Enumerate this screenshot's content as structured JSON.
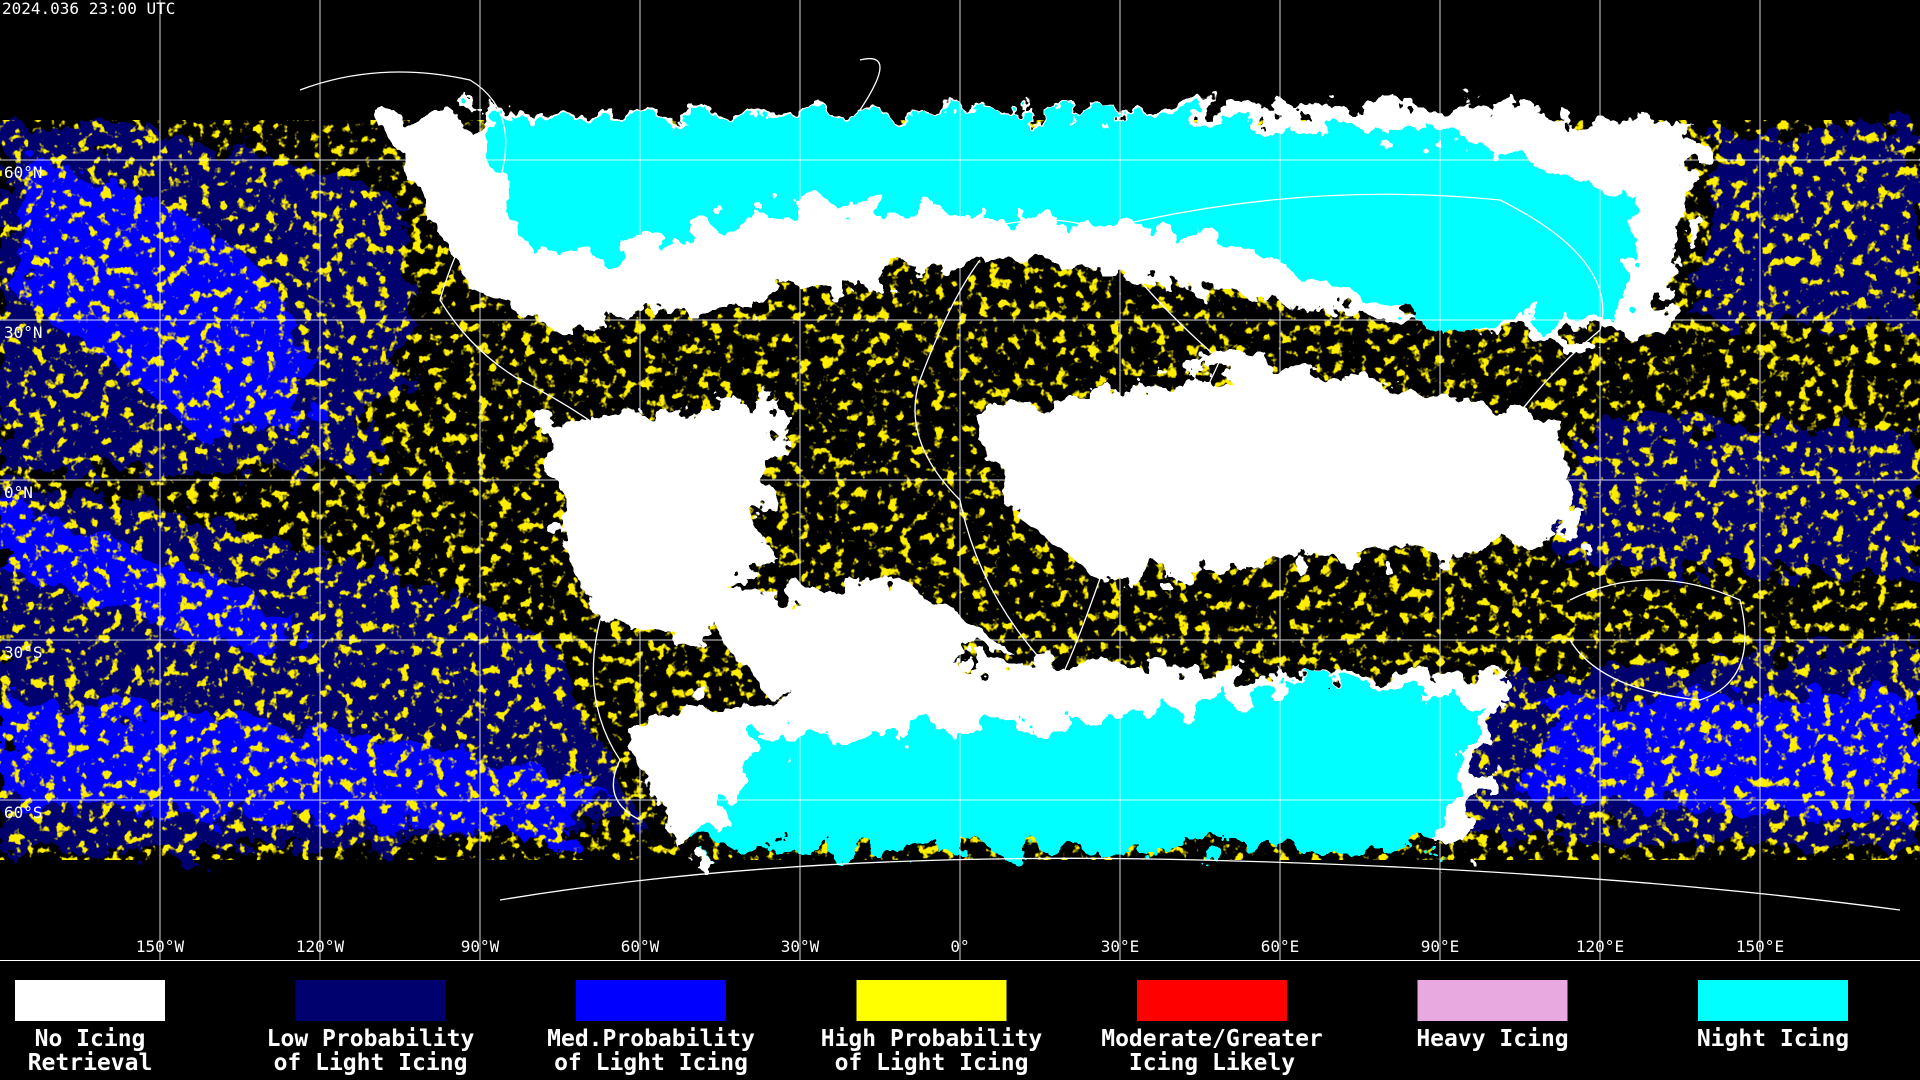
{
  "header": {
    "title": "2024.036 23:00 UTC"
  },
  "map": {
    "xlim": [
      -180,
      180
    ],
    "ylim": [
      -90,
      90
    ],
    "xticks": [
      {
        "value": -150,
        "label": "150°W"
      },
      {
        "value": -120,
        "label": "120°W"
      },
      {
        "value": -90,
        "label": "90°W"
      },
      {
        "value": -60,
        "label": "60°W"
      },
      {
        "value": -30,
        "label": "30°W"
      },
      {
        "value": 0,
        "label": "0°"
      },
      {
        "value": 30,
        "label": "30°E"
      },
      {
        "value": 60,
        "label": "60°E"
      },
      {
        "value": 90,
        "label": "90°E"
      },
      {
        "value": 120,
        "label": "120°E"
      },
      {
        "value": 150,
        "label": "150°E"
      }
    ],
    "yticks": [
      {
        "value": 60,
        "label": "60°N"
      },
      {
        "value": 30,
        "label": "30°N"
      },
      {
        "value": 0,
        "label": "0°N"
      },
      {
        "value": -30,
        "label": "30°S"
      },
      {
        "value": -60,
        "label": "60°S"
      }
    ]
  },
  "legend": [
    {
      "color": "#ffffff",
      "lines": [
        "No Icing",
        "Retrieval"
      ]
    },
    {
      "color": "#00006e",
      "lines": [
        "Low Probability",
        "of Light Icing"
      ]
    },
    {
      "color": "#0000ff",
      "lines": [
        "Med.Probability",
        "of Light Icing"
      ]
    },
    {
      "color": "#ffff00",
      "lines": [
        "High Probability",
        "of Light Icing"
      ]
    },
    {
      "color": "#ff0000",
      "lines": [
        "Moderate/Greater",
        "Icing Likely"
      ]
    },
    {
      "color": "#e8a8e0",
      "lines": [
        "Heavy Icing"
      ]
    },
    {
      "color": "#00ffff",
      "lines": [
        "Night Icing"
      ]
    }
  ]
}
